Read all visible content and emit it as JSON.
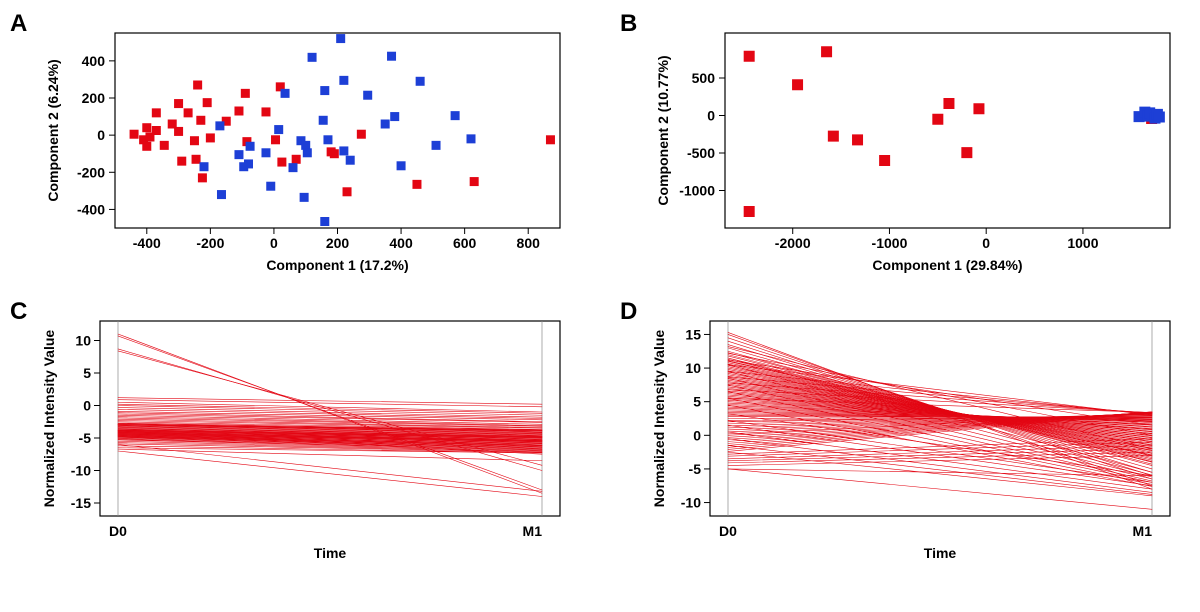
{
  "background_color": "#ffffff",
  "panelA": {
    "label": "A",
    "type": "scatter",
    "xlabel": "Component 1 (17.2%)",
    "ylabel": "Component 2 (6.24%)",
    "xlim": [
      -500,
      900
    ],
    "ylim": [
      -500,
      550
    ],
    "xticks": [
      -400,
      -200,
      0,
      200,
      400,
      600,
      800
    ],
    "yticks": [
      -400,
      -200,
      0,
      200,
      400
    ],
    "label_fontsize": 14,
    "tick_fontsize": 14,
    "marker_size": 9,
    "marker_style": "square",
    "red": "#e30613",
    "blue": "#1d3fd6",
    "red_points": [
      [
        -440,
        5
      ],
      [
        -410,
        -25
      ],
      [
        -400,
        40
      ],
      [
        -400,
        -60
      ],
      [
        -390,
        -10
      ],
      [
        -370,
        120
      ],
      [
        -370,
        25
      ],
      [
        -345,
        -55
      ],
      [
        -320,
        60
      ],
      [
        -300,
        170
      ],
      [
        -300,
        20
      ],
      [
        -290,
        -140
      ],
      [
        -270,
        120
      ],
      [
        -250,
        -30
      ],
      [
        -245,
        -130
      ],
      [
        -240,
        270
      ],
      [
        -230,
        80
      ],
      [
        -225,
        -230
      ],
      [
        -210,
        175
      ],
      [
        -200,
        -15
      ],
      [
        -150,
        75
      ],
      [
        -110,
        130
      ],
      [
        -90,
        225
      ],
      [
        -85,
        -35
      ],
      [
        -25,
        125
      ],
      [
        5,
        -25
      ],
      [
        20,
        260
      ],
      [
        25,
        -145
      ],
      [
        70,
        -130
      ],
      [
        180,
        -90
      ],
      [
        190,
        -100
      ],
      [
        230,
        -305
      ],
      [
        275,
        5
      ],
      [
        450,
        -265
      ],
      [
        630,
        -250
      ],
      [
        870,
        -25
      ]
    ],
    "blue_points": [
      [
        -220,
        -170
      ],
      [
        -170,
        50
      ],
      [
        -165,
        -320
      ],
      [
        -110,
        -105
      ],
      [
        -95,
        -170
      ],
      [
        -80,
        -155
      ],
      [
        -75,
        -60
      ],
      [
        -25,
        -95
      ],
      [
        -10,
        -275
      ],
      [
        15,
        30
      ],
      [
        35,
        225
      ],
      [
        60,
        -175
      ],
      [
        85,
        -30
      ],
      [
        95,
        -335
      ],
      [
        100,
        -55
      ],
      [
        105,
        -95
      ],
      [
        120,
        419
      ],
      [
        155,
        80
      ],
      [
        160,
        240
      ],
      [
        160,
        -465
      ],
      [
        170,
        -25
      ],
      [
        210,
        520
      ],
      [
        220,
        295
      ],
      [
        220,
        -85
      ],
      [
        240,
        -135
      ],
      [
        295,
        215
      ],
      [
        350,
        60
      ],
      [
        370,
        425
      ],
      [
        380,
        100
      ],
      [
        400,
        -165
      ],
      [
        460,
        290
      ],
      [
        510,
        -55
      ],
      [
        570,
        105
      ],
      [
        620,
        -20
      ]
    ]
  },
  "panelB": {
    "label": "B",
    "type": "scatter",
    "xlabel": "Component 1 (29.84%)",
    "ylabel": "Component 2 (10.77%)",
    "xlim": [
      -2700,
      1900
    ],
    "ylim": [
      -1500,
      1100
    ],
    "xticks": [
      -2000,
      -1000,
      0,
      1000
    ],
    "yticks": [
      -1000,
      -500,
      0,
      500
    ],
    "label_fontsize": 14,
    "tick_fontsize": 14,
    "marker_size": 11,
    "marker_style": "square",
    "red": "#e30613",
    "blue": "#1d3fd6",
    "red_points": [
      [
        -2450,
        790
      ],
      [
        -2450,
        -1280
      ],
      [
        -1950,
        410
      ],
      [
        -1650,
        850
      ],
      [
        -1580,
        -275
      ],
      [
        -1330,
        -325
      ],
      [
        -1050,
        -600
      ],
      [
        -500,
        -50
      ],
      [
        -385,
        160
      ],
      [
        -200,
        -495
      ],
      [
        -75,
        90
      ],
      [
        1710,
        -40
      ]
    ],
    "blue_points": [
      [
        1580,
        -15
      ],
      [
        1640,
        45
      ],
      [
        1670,
        -8
      ],
      [
        1690,
        35
      ],
      [
        1720,
        5
      ],
      [
        1745,
        -35
      ],
      [
        1770,
        15
      ],
      [
        1790,
        -20
      ]
    ]
  },
  "panelC": {
    "label": "C",
    "type": "line",
    "xlabel": "Time",
    "ylabel": "Normalized Intensity Value",
    "xcat": [
      "D0",
      "M1"
    ],
    "ylim": [
      -17,
      13
    ],
    "yticks": [
      -15,
      -10,
      -5,
      0,
      5,
      10
    ],
    "label_fontsize": 14,
    "tick_fontsize": 14,
    "line_color": "#e30613",
    "line_width": 0.6,
    "segments": [
      [
        11,
        -13.5
      ],
      [
        10.7,
        -13
      ],
      [
        8.7,
        -10
      ],
      [
        8.4,
        -9.2
      ],
      [
        1.2,
        0.2
      ],
      [
        0.9,
        -0.2
      ],
      [
        0.5,
        -1
      ],
      [
        0.2,
        -1.2
      ],
      [
        0,
        -1.5
      ],
      [
        -0.3,
        -1.8
      ],
      [
        -0.6,
        -2
      ],
      [
        -0.9,
        -2.2
      ],
      [
        -1.1,
        -2.5
      ],
      [
        -1.3,
        -2.6
      ],
      [
        -1.5,
        -2.9
      ],
      [
        -1.7,
        -3.1
      ],
      [
        -1.9,
        -3.2
      ],
      [
        -2.1,
        -3.4
      ],
      [
        -2.3,
        -3.5
      ],
      [
        -2.5,
        -3.7
      ],
      [
        -2.7,
        -3.8
      ],
      [
        -2.8,
        -3.9
      ],
      [
        -2.9,
        -4
      ],
      [
        -3.0,
        -4.1
      ],
      [
        -3.1,
        -4.2
      ],
      [
        -3.2,
        -4.3
      ],
      [
        -3.3,
        -4.4
      ],
      [
        -3.4,
        -4.5
      ],
      [
        -3.5,
        -4.6
      ],
      [
        -3.6,
        -4.7
      ],
      [
        -3.7,
        -4.75
      ],
      [
        -3.75,
        -4.8
      ],
      [
        -3.8,
        -4.85
      ],
      [
        -3.85,
        -4.9
      ],
      [
        -3.9,
        -4.95
      ],
      [
        -3.95,
        -5
      ],
      [
        -4,
        -5.1
      ],
      [
        -4.05,
        -5.2
      ],
      [
        -4.1,
        -5.3
      ],
      [
        -4.15,
        -5.35
      ],
      [
        -4.2,
        -5.4
      ],
      [
        -4.25,
        -5.45
      ],
      [
        -4.3,
        -5.5
      ],
      [
        -4.35,
        -5.55
      ],
      [
        -4.4,
        -5.6
      ],
      [
        -4.45,
        -5.7
      ],
      [
        -4.5,
        -5.8
      ],
      [
        -4.55,
        -5.9
      ],
      [
        -4.6,
        -6
      ],
      [
        -4.65,
        -6.1
      ],
      [
        -4.7,
        -6.15
      ],
      [
        -4.75,
        -6.2
      ],
      [
        -4.8,
        -6.3
      ],
      [
        -4.85,
        -6.4
      ],
      [
        -4.9,
        -6.5
      ],
      [
        -5,
        -6.6
      ],
      [
        -5.1,
        -6.7
      ],
      [
        -5.2,
        -6.8
      ],
      [
        -5.3,
        -6.9
      ],
      [
        -5.5,
        -7
      ],
      [
        -5.7,
        -7.1
      ],
      [
        -5.9,
        -7.2
      ],
      [
        -6.2,
        -7.3
      ],
      [
        -6.5,
        -7.3
      ],
      [
        -2.9,
        -3.75
      ],
      [
        -3.9,
        -7.5
      ],
      [
        -2.9,
        -3.9
      ],
      [
        -3.0,
        -3.9
      ],
      [
        -6.7,
        -8.5
      ],
      [
        -7,
        -14
      ],
      [
        -6,
        -13.2
      ]
    ]
  },
  "panelD": {
    "label": "D",
    "type": "line",
    "xlabel": "Time",
    "ylabel": "Normalized Intensity Value",
    "xcat": [
      "D0",
      "M1"
    ],
    "ylim": [
      -12,
      17
    ],
    "yticks": [
      -10,
      -5,
      0,
      5,
      10,
      15
    ],
    "label_fontsize": 14,
    "tick_fontsize": 14,
    "line_color": "#e30613",
    "line_width": 0.6,
    "segments": [
      [
        15.3,
        -8
      ],
      [
        15,
        -7.5
      ],
      [
        14.5,
        -6.5
      ],
      [
        14,
        -6
      ],
      [
        13.5,
        -5.5
      ],
      [
        13,
        -5
      ],
      [
        12.5,
        -4.5
      ],
      [
        12.3,
        -4.3
      ],
      [
        12,
        -4
      ],
      [
        11.8,
        -3.9
      ],
      [
        11.5,
        -3.7
      ],
      [
        11.3,
        -3.5
      ],
      [
        11.1,
        -3.3
      ],
      [
        11,
        -3.1
      ],
      [
        10.8,
        -3
      ],
      [
        10.6,
        -2.9
      ],
      [
        10.4,
        -2.7
      ],
      [
        10.2,
        -2.5
      ],
      [
        10,
        -2.3
      ],
      [
        9.8,
        -2.2
      ],
      [
        9.6,
        -2
      ],
      [
        9.4,
        -1.9
      ],
      [
        9.2,
        -1.7
      ],
      [
        9,
        -1.5
      ],
      [
        8.8,
        -1.4
      ],
      [
        8.6,
        -1.2
      ],
      [
        8.4,
        -1
      ],
      [
        8.2,
        -0.9
      ],
      [
        8,
        -0.7
      ],
      [
        7.8,
        -0.6
      ],
      [
        7.6,
        -0.4
      ],
      [
        7.4,
        -0.3
      ],
      [
        7.2,
        -0.1
      ],
      [
        7,
        0
      ],
      [
        6.8,
        0.2
      ],
      [
        6.6,
        0.3
      ],
      [
        6.4,
        0.5
      ],
      [
        6.2,
        0.6
      ],
      [
        6,
        0.8
      ],
      [
        5.8,
        0.9
      ],
      [
        5.6,
        1
      ],
      [
        5.4,
        1.2
      ],
      [
        5.2,
        1.3
      ],
      [
        5,
        1.5
      ],
      [
        4.8,
        1.6
      ],
      [
        4.6,
        1.7
      ],
      [
        4.4,
        1.9
      ],
      [
        4.2,
        2
      ],
      [
        4,
        2.1
      ],
      [
        3.8,
        2.2
      ],
      [
        3.6,
        2.3
      ],
      [
        3.4,
        2.4
      ],
      [
        3.2,
        2.5
      ],
      [
        3,
        2.6
      ],
      [
        2.8,
        2.7
      ],
      [
        2.5,
        2.8
      ],
      [
        2.2,
        2.9
      ],
      [
        2,
        3
      ],
      [
        1.7,
        3.1
      ],
      [
        1.4,
        3.15
      ],
      [
        1.1,
        3.2
      ],
      [
        0.8,
        3.25
      ],
      [
        0.5,
        3.3
      ],
      [
        0.2,
        3.35
      ],
      [
        0,
        3.38
      ],
      [
        -0.3,
        3.4
      ],
      [
        -0.6,
        3.42
      ],
      [
        -0.9,
        3.45
      ],
      [
        -1.2,
        3.48
      ],
      [
        -1.5,
        3.5
      ],
      [
        -1.8,
        3.48
      ],
      [
        -2.1,
        3.45
      ],
      [
        -2.4,
        3.4
      ],
      [
        -2.8,
        -0.5
      ],
      [
        -3.1,
        -1
      ],
      [
        -3.5,
        -1.5
      ],
      [
        -3.8,
        -2
      ],
      [
        -4.1,
        -2.5
      ],
      [
        -4.5,
        -3
      ],
      [
        -5,
        -6
      ],
      [
        -5,
        -11
      ],
      [
        10.5,
        3
      ],
      [
        9.5,
        3.1
      ],
      [
        8.7,
        3.2
      ],
      [
        7.8,
        3.3
      ],
      [
        6.8,
        3.35
      ],
      [
        5.5,
        3.4
      ],
      [
        11.2,
        1.5
      ],
      [
        12.2,
        0
      ],
      [
        13.2,
        -2
      ],
      [
        3.2,
        -6
      ],
      [
        2.2,
        -7
      ],
      [
        1.5,
        -7.5
      ],
      [
        0.5,
        -8
      ],
      [
        -0.5,
        -8.5
      ],
      [
        -1.5,
        -8.8
      ],
      [
        -2.5,
        -9
      ],
      [
        11.5,
        -5.5
      ],
      [
        10.5,
        -5.9
      ],
      [
        9.5,
        -6.2
      ],
      [
        8.5,
        -6.5
      ],
      [
        7.5,
        -6.8
      ],
      [
        6.5,
        -7
      ],
      [
        5.5,
        -7.3
      ],
      [
        4.5,
        -7.6
      ]
    ]
  }
}
